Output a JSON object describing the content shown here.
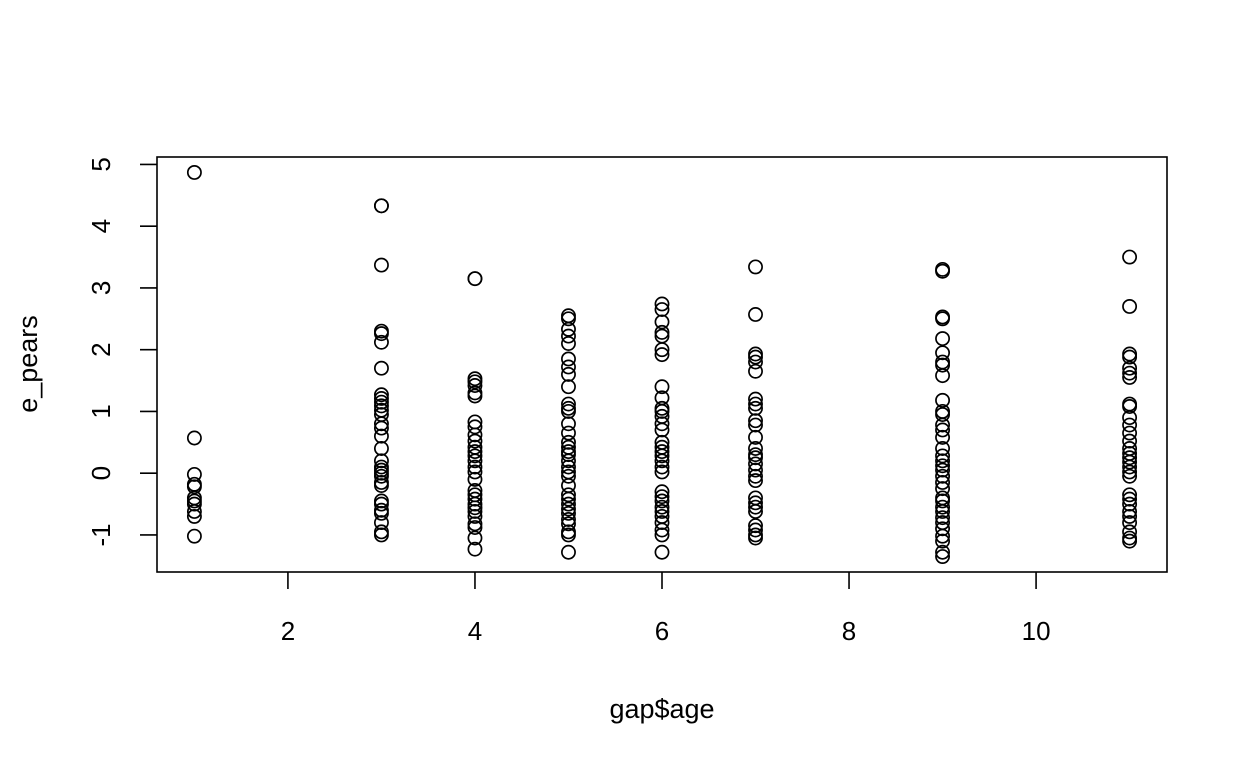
{
  "chart_data": {
    "type": "scatter",
    "title": "",
    "xlabel": "gap$age",
    "ylabel": "e_pears",
    "xlim": [
      0.6,
      11.4
    ],
    "ylim": [
      -1.6,
      5.12
    ],
    "xticks": [
      2,
      4,
      6,
      8,
      10
    ],
    "yticks": [
      -1,
      0,
      1,
      2,
      3,
      4,
      5
    ],
    "grid": false,
    "legend": "none",
    "marker": "open-circle",
    "colors": {
      "point": "#000000",
      "axis": "#000000",
      "background": "#ffffff"
    },
    "groups": [
      {
        "x": 1,
        "y": [
          4.87,
          0.57,
          -0.02,
          -0.18,
          -0.22,
          -0.4,
          -0.45,
          -0.5,
          -0.62,
          -0.7,
          -1.02
        ]
      },
      {
        "x": 3,
        "y": [
          4.33,
          4.33,
          3.37,
          2.3,
          2.26,
          2.12,
          1.7,
          1.27,
          1.21,
          1.15,
          1.09,
          1.02,
          0.95,
          0.8,
          0.73,
          0.6,
          0.4,
          0.2,
          0.1,
          0.05,
          0.0,
          -0.05,
          -0.15,
          -0.2,
          -0.45,
          -0.5,
          -0.6,
          -0.65,
          -0.8,
          -0.95,
          -1.0
        ]
      },
      {
        "x": 4,
        "y": [
          3.15,
          3.15,
          1.53,
          1.48,
          1.42,
          1.3,
          1.25,
          0.83,
          0.75,
          0.62,
          0.52,
          0.42,
          0.35,
          0.28,
          0.2,
          0.1,
          0.02,
          -0.1,
          -0.28,
          -0.35,
          -0.42,
          -0.5,
          -0.56,
          -0.62,
          -0.7,
          -0.82,
          -0.88,
          -1.05,
          -1.23
        ]
      },
      {
        "x": 5,
        "y": [
          2.55,
          2.5,
          2.33,
          2.22,
          2.1,
          1.85,
          1.72,
          1.6,
          1.4,
          1.12,
          1.05,
          1.0,
          0.8,
          0.65,
          0.5,
          0.42,
          0.35,
          0.3,
          0.2,
          0.1,
          0.02,
          -0.05,
          -0.2,
          -0.35,
          -0.42,
          -0.5,
          -0.58,
          -0.65,
          -0.75,
          -0.82,
          -0.95,
          -1.0,
          -1.28
        ]
      },
      {
        "x": 6,
        "y": [
          2.74,
          2.65,
          2.45,
          2.28,
          2.22,
          2.0,
          1.92,
          1.4,
          1.22,
          1.05,
          1.0,
          0.92,
          0.8,
          0.7,
          0.5,
          0.42,
          0.35,
          0.28,
          0.2,
          0.1,
          0.02,
          -0.3,
          -0.38,
          -0.45,
          -0.55,
          -0.62,
          -0.7,
          -0.8,
          -0.92,
          -1.0,
          -1.28
        ]
      },
      {
        "x": 7,
        "y": [
          3.34,
          2.57,
          1.93,
          1.88,
          1.8,
          1.65,
          1.2,
          1.12,
          1.05,
          0.85,
          0.78,
          0.58,
          0.4,
          0.3,
          0.25,
          0.15,
          0.05,
          -0.05,
          -0.12,
          -0.4,
          -0.48,
          -0.55,
          -0.62,
          -0.85,
          -0.92,
          -1.0,
          -1.05
        ]
      },
      {
        "x": 9,
        "y": [
          3.3,
          3.27,
          2.53,
          2.5,
          2.18,
          1.95,
          1.8,
          1.75,
          1.58,
          1.18,
          1.0,
          0.95,
          0.78,
          0.7,
          0.58,
          0.4,
          0.28,
          0.2,
          0.12,
          0.05,
          -0.05,
          -0.15,
          -0.25,
          -0.4,
          -0.45,
          -0.55,
          -0.62,
          -0.72,
          -0.8,
          -0.9,
          -1.02,
          -1.1,
          -1.28,
          -1.35
        ]
      },
      {
        "x": 11,
        "y": [
          3.5,
          2.7,
          1.93,
          1.88,
          1.7,
          1.62,
          1.55,
          1.12,
          1.08,
          0.9,
          0.78,
          0.65,
          0.52,
          0.4,
          0.32,
          0.25,
          0.18,
          0.1,
          0.02,
          -0.05,
          -0.35,
          -0.42,
          -0.5,
          -0.62,
          -0.7,
          -0.8,
          -0.95,
          -1.05,
          -1.1
        ]
      }
    ]
  }
}
